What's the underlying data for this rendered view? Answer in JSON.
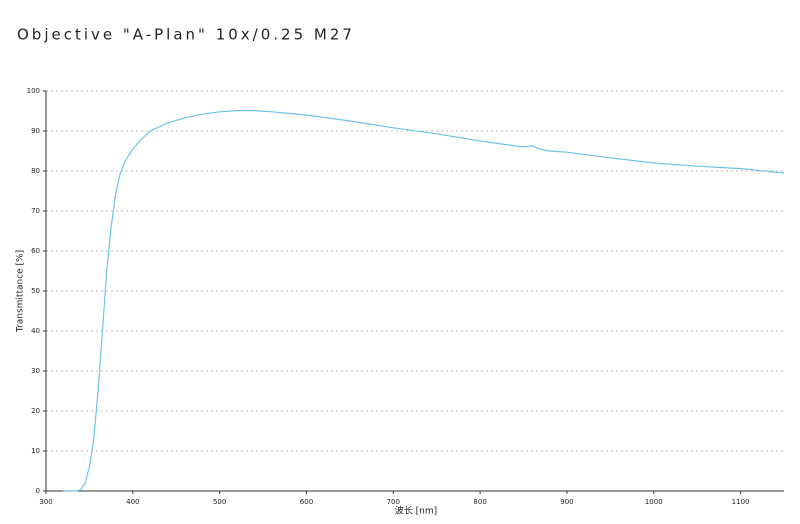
{
  "chart_data": {
    "type": "line",
    "title": "Objective \"A-Plan\" 10x/0.25 M27",
    "x_label": "波长 [nm]",
    "y_label": "Transmittance [%]",
    "xlim": [
      300,
      1150
    ],
    "xticks": [
      300,
      400,
      500,
      600,
      700,
      800,
      900,
      1000,
      1100
    ],
    "ylim": [
      0,
      100
    ],
    "yticks": [
      0,
      10,
      20,
      30,
      40,
      50,
      60,
      70,
      80,
      90,
      100
    ],
    "grid": true,
    "series": [
      {
        "name": "Transmittance",
        "color": "#6ec3e6",
        "x": [
          320,
          335,
          340,
          345,
          350,
          355,
          360,
          365,
          370,
          375,
          380,
          385,
          390,
          400,
          410,
          420,
          440,
          460,
          480,
          500,
          520,
          540,
          560,
          600,
          650,
          700,
          750,
          800,
          850,
          860,
          870,
          880,
          900,
          950,
          1000,
          1050,
          1100,
          1150
        ],
        "values": [
          0,
          0,
          0.3,
          2,
          6,
          13,
          25,
          40,
          55,
          66,
          74,
          79,
          82,
          85.5,
          88,
          90,
          92,
          93.3,
          94.2,
          94.8,
          95.1,
          95.1,
          94.8,
          94,
          92.5,
          90.8,
          89.3,
          87.5,
          86,
          86.3,
          85.4,
          85,
          84.7,
          83.3,
          82,
          81.2,
          80.6,
          79.5
        ]
      }
    ]
  }
}
